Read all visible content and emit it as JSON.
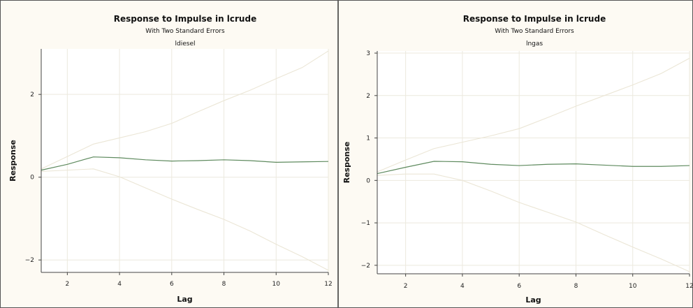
{
  "chart_data": [
    {
      "type": "line",
      "title": "Response to Impulse in lcrude",
      "subtitle": "With Two Standard Errors",
      "panel_title": "ldiesel",
      "xlabel": "Lag",
      "ylabel": "Response",
      "xlim": [
        1,
        12
      ],
      "ylim": [
        -2.3,
        3.1
      ],
      "xticks": [
        2,
        4,
        6,
        8,
        10,
        12
      ],
      "yticks": [
        -2,
        0,
        2
      ],
      "grid": true,
      "colors": {
        "response": "#5e8a5e",
        "bands": "#ebe6d6",
        "grid": "#ece9de"
      },
      "x": [
        1,
        2,
        3,
        4,
        5,
        6,
        7,
        8,
        9,
        10,
        11,
        12
      ],
      "series": [
        {
          "role": "response",
          "values": [
            0.17,
            0.31,
            0.49,
            0.47,
            0.42,
            0.39,
            0.4,
            0.42,
            0.4,
            0.36,
            0.37,
            0.38
          ]
        },
        {
          "role": "upper",
          "values": [
            0.2,
            0.5,
            0.8,
            0.95,
            1.1,
            1.3,
            1.58,
            1.85,
            2.1,
            2.38,
            2.65,
            3.05
          ]
        },
        {
          "role": "lower",
          "values": [
            0.14,
            0.17,
            0.2,
            0.01,
            -0.26,
            -0.53,
            -0.78,
            -1.02,
            -1.3,
            -1.62,
            -1.92,
            -2.25
          ]
        }
      ]
    },
    {
      "type": "line",
      "title": "Response to Impulse in lcrude",
      "subtitle": "With Two Standard Errors",
      "panel_title": "lngas",
      "xlabel": "Lag",
      "ylabel": "Response",
      "xlim": [
        1,
        12
      ],
      "ylim": [
        -2.2,
        3.05
      ],
      "xticks": [
        2,
        4,
        6,
        8,
        10,
        12
      ],
      "yticks": [
        -2,
        -1,
        0,
        1,
        2,
        3
      ],
      "grid": true,
      "colors": {
        "response": "#5e8a5e",
        "bands": "#ebe6d6",
        "grid": "#ece9de"
      },
      "x": [
        1,
        2,
        3,
        4,
        5,
        6,
        7,
        8,
        9,
        10,
        11,
        12
      ],
      "series": [
        {
          "role": "response",
          "values": [
            0.16,
            0.31,
            0.45,
            0.44,
            0.38,
            0.35,
            0.38,
            0.39,
            0.36,
            0.33,
            0.33,
            0.35
          ]
        },
        {
          "role": "upper",
          "values": [
            0.2,
            0.48,
            0.75,
            0.9,
            1.05,
            1.22,
            1.48,
            1.75,
            2.0,
            2.25,
            2.52,
            2.88
          ]
        },
        {
          "role": "lower",
          "values": [
            0.12,
            0.15,
            0.15,
            0.0,
            -0.25,
            -0.52,
            -0.75,
            -0.98,
            -1.28,
            -1.57,
            -1.85,
            -2.15
          ]
        }
      ]
    }
  ]
}
